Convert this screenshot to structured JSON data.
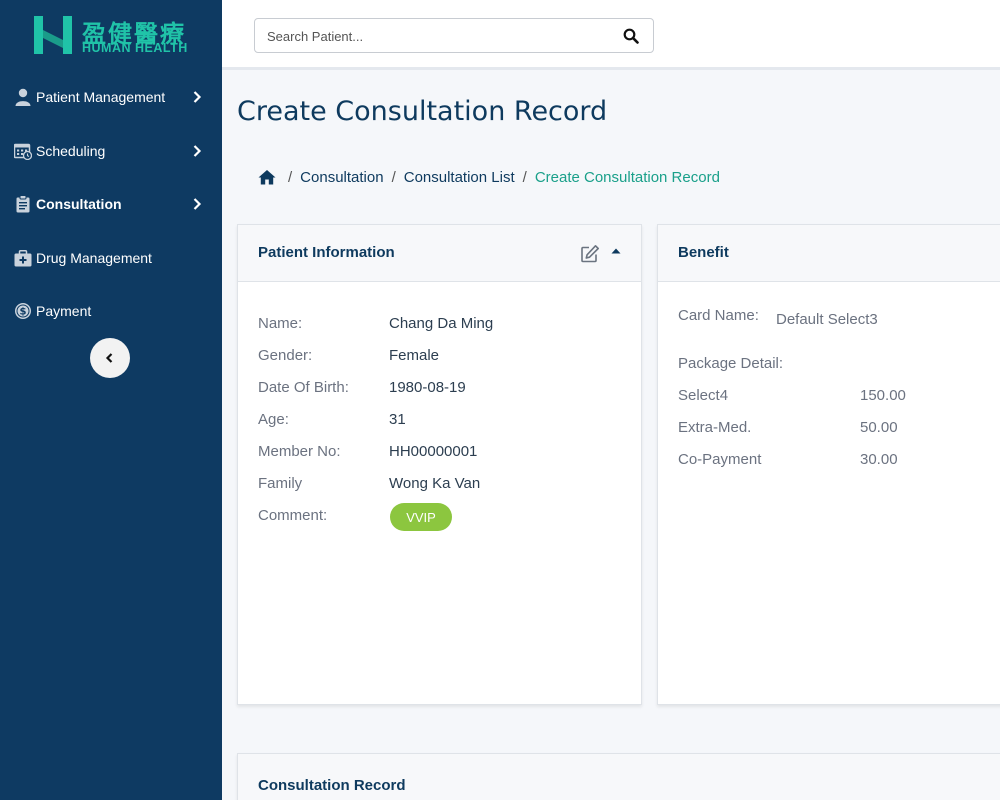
{
  "brand": {
    "name_cn": "盈健醫療",
    "name_en": "HUMAN HEALTH",
    "color": "#20c3a8"
  },
  "sidebar": {
    "bg": "#0e3a62",
    "items": [
      {
        "label": "Patient Management",
        "icon": "user-icon",
        "has_chevron": true
      },
      {
        "label": "Scheduling",
        "icon": "calendar-icon",
        "has_chevron": true
      },
      {
        "label": "Consultation",
        "icon": "clipboard-icon",
        "has_chevron": true,
        "active": true
      },
      {
        "label": "Drug Management",
        "icon": "medical-kit-icon",
        "has_chevron": false
      },
      {
        "label": "Payment",
        "icon": "coin-icon",
        "has_chevron": false
      }
    ],
    "collapse_icon": "chevron-left-icon"
  },
  "search": {
    "placeholder": "Search Patient...",
    "value": "",
    "icon": "search-icon"
  },
  "page": {
    "title": "Create Consultation Record"
  },
  "breadcrumb": {
    "home_icon": "home-icon",
    "items": [
      "Consultation",
      "Consultation List"
    ],
    "current": "Create Consultation Record"
  },
  "patient_info": {
    "title": "Patient Information",
    "fields": [
      {
        "label": "Name:",
        "value": "Chang Da Ming"
      },
      {
        "label": "Gender:",
        "value": "Female"
      },
      {
        "label": "Date Of Birth:",
        "value": "1980-08-19"
      },
      {
        "label": "Age:",
        "value": "31"
      },
      {
        "label": "Member No:",
        "value": "HH00000001"
      },
      {
        "label": "Family",
        "value": "Wong Ka Van"
      }
    ],
    "comment_label": "Comment:",
    "comment_badge": "VVIP",
    "badge_color": "#8cc63f"
  },
  "benefit": {
    "title": "Benefit",
    "card_name_label": "Card Name:",
    "card_name_value": "Default Select3",
    "package_detail_label": "Package Detail:",
    "items": [
      {
        "label": "Select4",
        "value": "150.00"
      },
      {
        "label": "Extra-Med.",
        "value": "50.00"
      },
      {
        "label": "Co-Payment",
        "value": "30.00"
      }
    ]
  },
  "consultation_record": {
    "title": "Consultation Record"
  }
}
